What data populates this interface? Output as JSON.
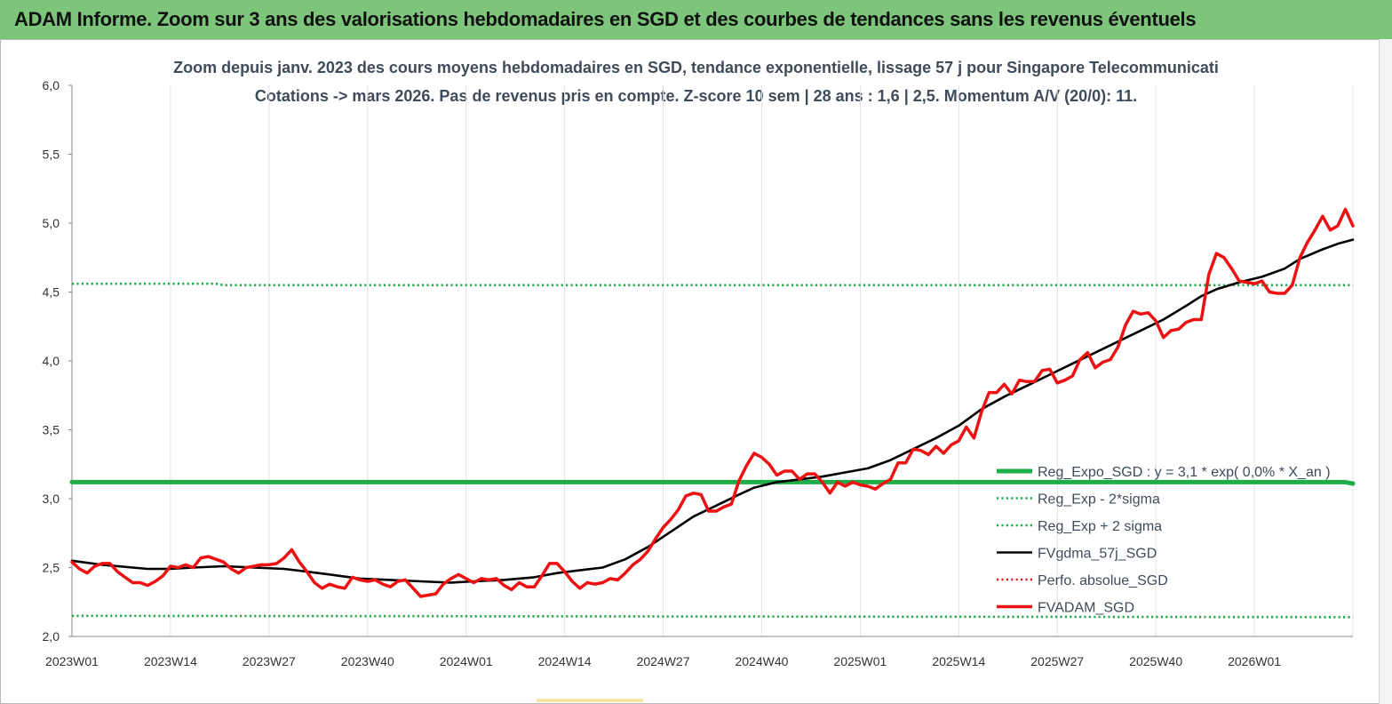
{
  "banner": {
    "title": "ADAM Informe. Zoom sur 3 ans des valorisations hebdomadaires en SGD et des courbes de tendances sans les revenus éventuels"
  },
  "colors": {
    "banner_bg": "#7cc57a",
    "trend_green": "#1fad4a",
    "sigma_green": "#22a84a",
    "gdma_black": "#000000",
    "perfo_red": "#e02020",
    "adam_red": "#ee1111",
    "title_text": "#404b5a"
  },
  "chart_data": {
    "type": "line",
    "title": "Zoom depuis janv. 2023 des cours moyens hebdomadaires en SGD, tendance exponentielle, lissage 57 j pour Singapore Telecommunicati",
    "subtitle": "Cotations -> mars 2026. Pas de revenus pris en compte. Z-score 10 sem | 28 ans : 1,6 | 2,5. Momentum A/V (20/0): 11.",
    "xlabel": "",
    "ylabel": "",
    "ylim": [
      2.0,
      6.0
    ],
    "xlim": [
      0,
      169
    ],
    "yticks": [
      "2,0",
      "2,5",
      "3,0",
      "3,5",
      "4,0",
      "4,5",
      "5,0",
      "5,5",
      "6,0"
    ],
    "xticks": [
      {
        "x": 0,
        "label": "2023W01"
      },
      {
        "x": 13,
        "label": "2023W14"
      },
      {
        "x": 26,
        "label": "2023W27"
      },
      {
        "x": 39,
        "label": "2023W40"
      },
      {
        "x": 52,
        "label": "2024W01"
      },
      {
        "x": 65,
        "label": "2024W14"
      },
      {
        "x": 78,
        "label": "2024W27"
      },
      {
        "x": 91,
        "label": "2024W40"
      },
      {
        "x": 104,
        "label": "2025W01"
      },
      {
        "x": 117,
        "label": "2025W14"
      },
      {
        "x": 130,
        "label": "2025W27"
      },
      {
        "x": 143,
        "label": "2025W40"
      },
      {
        "x": 156,
        "label": "2026W01"
      }
    ],
    "grid": "vertical",
    "legend_position": "right",
    "series": [
      {
        "name": "Reg_Expo_SGD : y = 3,1 * exp( 0,0% * X_an )",
        "style": "solid-thick",
        "color": "#1fad4a",
        "points": [
          [
            0,
            3.12
          ],
          [
            168,
            3.12
          ],
          [
            169,
            3.11
          ]
        ]
      },
      {
        "name": "Reg_Exp - 2*sigma",
        "style": "dotted",
        "color": "#22a84a",
        "points": [
          [
            0,
            2.15
          ],
          [
            169,
            2.14
          ]
        ]
      },
      {
        "name": "Reg_Exp + 2 sigma",
        "style": "dotted",
        "color": "#22a84a",
        "points": [
          [
            0,
            4.56
          ],
          [
            19,
            4.56
          ],
          [
            20,
            4.55
          ],
          [
            169,
            4.55
          ]
        ]
      },
      {
        "name": "FVgdma_57j_SGD",
        "style": "solid",
        "color": "#000000",
        "points": [
          [
            0,
            2.55
          ],
          [
            4,
            2.52
          ],
          [
            8,
            2.5
          ],
          [
            10,
            2.49
          ],
          [
            13,
            2.49
          ],
          [
            16,
            2.5
          ],
          [
            20,
            2.51
          ],
          [
            24,
            2.5
          ],
          [
            28,
            2.49
          ],
          [
            31,
            2.47
          ],
          [
            34,
            2.45
          ],
          [
            38,
            2.42
          ],
          [
            42,
            2.41
          ],
          [
            46,
            2.4
          ],
          [
            50,
            2.39
          ],
          [
            53,
            2.4
          ],
          [
            57,
            2.41
          ],
          [
            61,
            2.43
          ],
          [
            64,
            2.46
          ],
          [
            67,
            2.48
          ],
          [
            70,
            2.5
          ],
          [
            73,
            2.56
          ],
          [
            76,
            2.65
          ],
          [
            79,
            2.76
          ],
          [
            82,
            2.87
          ],
          [
            85,
            2.95
          ],
          [
            88,
            3.03
          ],
          [
            90,
            3.08
          ],
          [
            93,
            3.12
          ],
          [
            96,
            3.14
          ],
          [
            99,
            3.16
          ],
          [
            102,
            3.19
          ],
          [
            105,
            3.22
          ],
          [
            108,
            3.28
          ],
          [
            111,
            3.36
          ],
          [
            114,
            3.44
          ],
          [
            117,
            3.53
          ],
          [
            120,
            3.65
          ],
          [
            123,
            3.74
          ],
          [
            126,
            3.82
          ],
          [
            129,
            3.9
          ],
          [
            132,
            3.98
          ],
          [
            135,
            4.06
          ],
          [
            138,
            4.14
          ],
          [
            141,
            4.22
          ],
          [
            144,
            4.3
          ],
          [
            147,
            4.4
          ],
          [
            149,
            4.47
          ],
          [
            151,
            4.52
          ],
          [
            154,
            4.57
          ],
          [
            157,
            4.61
          ],
          [
            160,
            4.67
          ],
          [
            162,
            4.74
          ],
          [
            165,
            4.81
          ],
          [
            167,
            4.85
          ],
          [
            169,
            4.88
          ]
        ]
      },
      {
        "name": "Perfo. absolue_SGD",
        "style": "dotted",
        "color": "#e02020",
        "points": []
      },
      {
        "name": "FVADAM_SGD",
        "style": "solid-thick",
        "color": "#ee1111",
        "points": [
          [
            0,
            2.54
          ],
          [
            1,
            2.49
          ],
          [
            2,
            2.46
          ],
          [
            3,
            2.51
          ],
          [
            4,
            2.53
          ],
          [
            5,
            2.53
          ],
          [
            6,
            2.47
          ],
          [
            7,
            2.43
          ],
          [
            8,
            2.39
          ],
          [
            9,
            2.39
          ],
          [
            10,
            2.37
          ],
          [
            11,
            2.4
          ],
          [
            12,
            2.44
          ],
          [
            13,
            2.51
          ],
          [
            14,
            2.5
          ],
          [
            15,
            2.52
          ],
          [
            16,
            2.5
          ],
          [
            17,
            2.57
          ],
          [
            18,
            2.58
          ],
          [
            19,
            2.56
          ],
          [
            20,
            2.54
          ],
          [
            21,
            2.49
          ],
          [
            22,
            2.46
          ],
          [
            23,
            2.5
          ],
          [
            24,
            2.51
          ],
          [
            25,
            2.52
          ],
          [
            26,
            2.52
          ],
          [
            27,
            2.53
          ],
          [
            28,
            2.57
          ],
          [
            29,
            2.63
          ],
          [
            30,
            2.54
          ],
          [
            31,
            2.47
          ],
          [
            32,
            2.39
          ],
          [
            33,
            2.35
          ],
          [
            34,
            2.38
          ],
          [
            35,
            2.36
          ],
          [
            36,
            2.35
          ],
          [
            37,
            2.43
          ],
          [
            38,
            2.41
          ],
          [
            39,
            2.4
          ],
          [
            40,
            2.41
          ],
          [
            41,
            2.38
          ],
          [
            42,
            2.36
          ],
          [
            43,
            2.4
          ],
          [
            44,
            2.41
          ],
          [
            45,
            2.35
          ],
          [
            46,
            2.29
          ],
          [
            47,
            2.3
          ],
          [
            48,
            2.31
          ],
          [
            49,
            2.38
          ],
          [
            50,
            2.42
          ],
          [
            51,
            2.45
          ],
          [
            52,
            2.42
          ],
          [
            53,
            2.39
          ],
          [
            54,
            2.42
          ],
          [
            55,
            2.41
          ],
          [
            56,
            2.42
          ],
          [
            57,
            2.37
          ],
          [
            58,
            2.34
          ],
          [
            59,
            2.39
          ],
          [
            60,
            2.36
          ],
          [
            61,
            2.36
          ],
          [
            62,
            2.44
          ],
          [
            63,
            2.53
          ],
          [
            64,
            2.53
          ],
          [
            65,
            2.47
          ],
          [
            66,
            2.4
          ],
          [
            67,
            2.35
          ],
          [
            68,
            2.39
          ],
          [
            69,
            2.38
          ],
          [
            70,
            2.39
          ],
          [
            71,
            2.42
          ],
          [
            72,
            2.41
          ],
          [
            73,
            2.46
          ],
          [
            74,
            2.52
          ],
          [
            75,
            2.56
          ],
          [
            76,
            2.62
          ],
          [
            77,
            2.71
          ],
          [
            78,
            2.79
          ],
          [
            79,
            2.85
          ],
          [
            80,
            2.92
          ],
          [
            81,
            3.02
          ],
          [
            82,
            3.04
          ],
          [
            83,
            3.03
          ],
          [
            84,
            2.91
          ],
          [
            85,
            2.91
          ],
          [
            86,
            2.94
          ],
          [
            87,
            2.96
          ],
          [
            88,
            3.13
          ],
          [
            89,
            3.24
          ],
          [
            90,
            3.33
          ],
          [
            91,
            3.3
          ],
          [
            92,
            3.25
          ],
          [
            93,
            3.17
          ],
          [
            94,
            3.2
          ],
          [
            95,
            3.2
          ],
          [
            96,
            3.14
          ],
          [
            97,
            3.18
          ],
          [
            98,
            3.18
          ],
          [
            99,
            3.12
          ],
          [
            100,
            3.04
          ],
          [
            101,
            3.12
          ],
          [
            102,
            3.09
          ],
          [
            103,
            3.12
          ],
          [
            104,
            3.1
          ],
          [
            105,
            3.09
          ],
          [
            106,
            3.07
          ],
          [
            107,
            3.11
          ],
          [
            108,
            3.14
          ],
          [
            109,
            3.26
          ],
          [
            110,
            3.26
          ],
          [
            111,
            3.36
          ],
          [
            112,
            3.35
          ],
          [
            113,
            3.32
          ],
          [
            114,
            3.38
          ],
          [
            115,
            3.33
          ],
          [
            116,
            3.39
          ],
          [
            117,
            3.42
          ],
          [
            118,
            3.52
          ],
          [
            119,
            3.44
          ],
          [
            120,
            3.63
          ],
          [
            121,
            3.77
          ],
          [
            122,
            3.77
          ],
          [
            123,
            3.83
          ],
          [
            124,
            3.76
          ],
          [
            125,
            3.86
          ],
          [
            126,
            3.85
          ],
          [
            127,
            3.85
          ],
          [
            128,
            3.93
          ],
          [
            129,
            3.94
          ],
          [
            130,
            3.84
          ],
          [
            131,
            3.86
          ],
          [
            132,
            3.89
          ],
          [
            133,
            4.01
          ],
          [
            134,
            4.06
          ],
          [
            135,
            3.95
          ],
          [
            136,
            3.99
          ],
          [
            137,
            4.01
          ],
          [
            138,
            4.1
          ],
          [
            139,
            4.26
          ],
          [
            140,
            4.36
          ],
          [
            141,
            4.34
          ],
          [
            142,
            4.35
          ],
          [
            143,
            4.29
          ],
          [
            144,
            4.17
          ],
          [
            145,
            4.22
          ],
          [
            146,
            4.23
          ],
          [
            147,
            4.28
          ],
          [
            148,
            4.3
          ],
          [
            149,
            4.3
          ],
          [
            150,
            4.63
          ],
          [
            151,
            4.78
          ],
          [
            152,
            4.75
          ],
          [
            153,
            4.67
          ],
          [
            154,
            4.58
          ],
          [
            155,
            4.57
          ],
          [
            156,
            4.56
          ],
          [
            157,
            4.58
          ],
          [
            158,
            4.5
          ],
          [
            159,
            4.49
          ],
          [
            160,
            4.49
          ],
          [
            161,
            4.55
          ],
          [
            162,
            4.75
          ],
          [
            163,
            4.86
          ],
          [
            164,
            4.95
          ],
          [
            165,
            5.05
          ],
          [
            166,
            4.95
          ],
          [
            167,
            4.98
          ],
          [
            168,
            5.1
          ],
          [
            169,
            4.98
          ]
        ]
      }
    ]
  }
}
